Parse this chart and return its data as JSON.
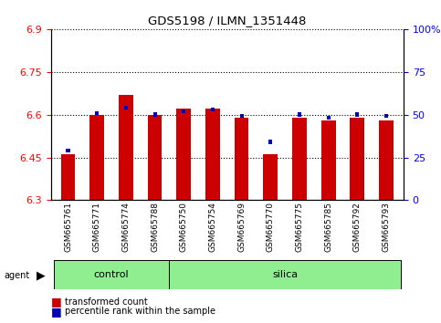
{
  "title": "GDS5198 / ILMN_1351448",
  "samples": [
    "GSM665761",
    "GSM665771",
    "GSM665774",
    "GSM665788",
    "GSM665750",
    "GSM665754",
    "GSM665769",
    "GSM665770",
    "GSM665775",
    "GSM665785",
    "GSM665792",
    "GSM665793"
  ],
  "transformed_count": [
    6.46,
    6.6,
    6.67,
    6.6,
    6.62,
    6.62,
    6.59,
    6.46,
    6.59,
    6.58,
    6.59,
    6.58
  ],
  "percentile_rank": [
    28,
    50,
    53,
    49,
    51,
    52,
    48,
    33,
    49,
    47,
    49,
    48
  ],
  "y_min": 6.3,
  "y_max": 6.9,
  "y_ticks_left": [
    6.3,
    6.45,
    6.6,
    6.75,
    6.9
  ],
  "y_tick_labels_left": [
    "6.3",
    "6.45",
    "6.6",
    "6.75",
    "6.9"
  ],
  "y_ticks_right": [
    0,
    25,
    50,
    75,
    100
  ],
  "y_tick_labels_right": [
    "0",
    "25",
    "50",
    "75",
    "100%"
  ],
  "control_samples": 4,
  "silica_samples": 8,
  "bar_color_red": "#CC0000",
  "bar_color_blue": "#0000BB",
  "green_bg": "#90EE90",
  "gray_bg": "#C8C8C8",
  "baseline": 6.3,
  "red_bar_width": 0.5,
  "blue_bar_width": 0.13
}
